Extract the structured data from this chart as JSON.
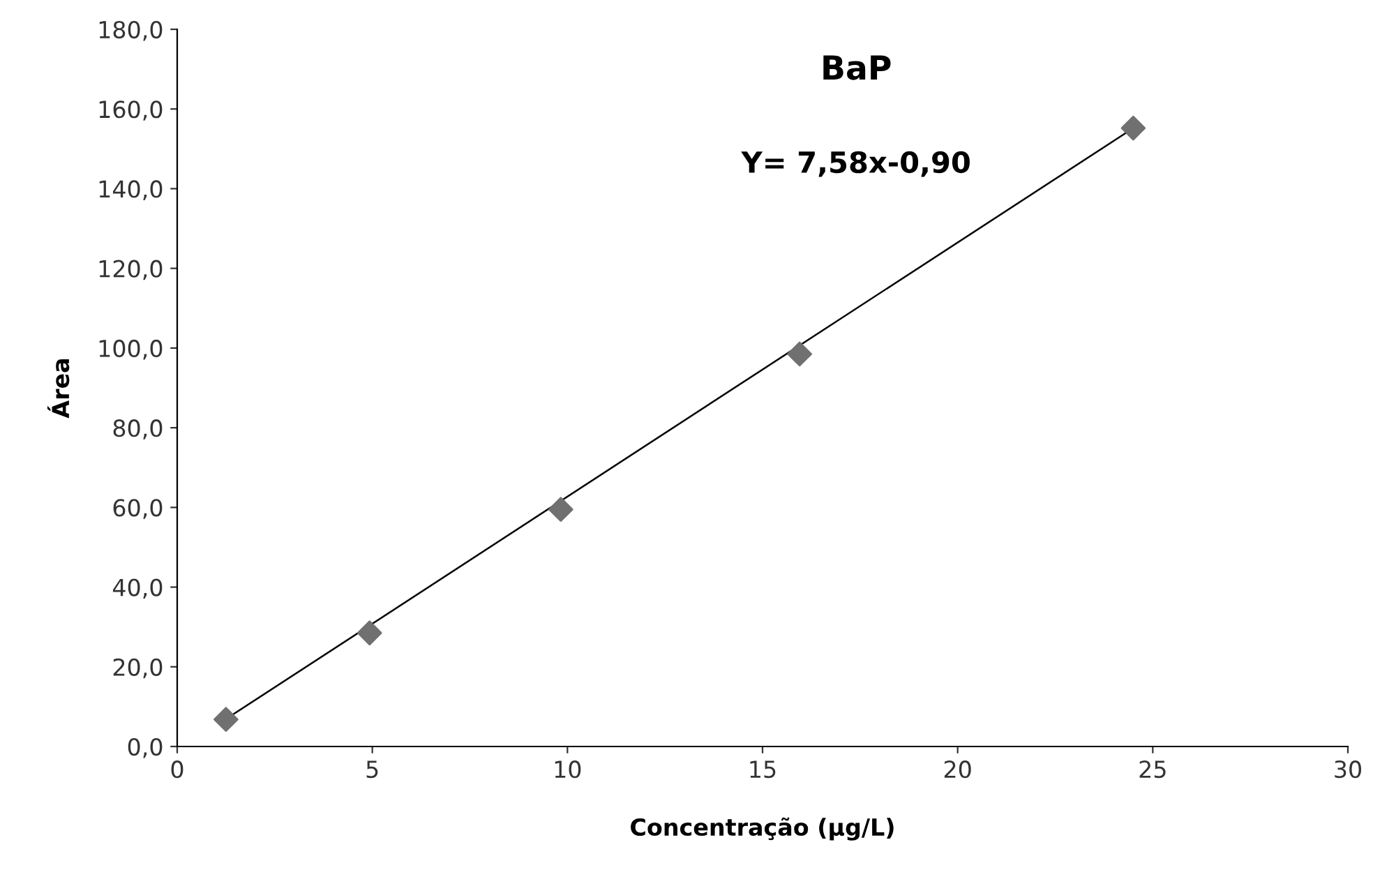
{
  "chart_data": {
    "type": "scatter",
    "title": "BaP",
    "xlabel": "Concentração (µg/L)",
    "ylabel": "Área",
    "annotations": [
      "Y= 7,58x-0,90"
    ],
    "series": [
      {
        "color": "#707070",
        "marker": "diamond",
        "x": [
          1.25,
          4.93,
          9.83,
          15.95,
          24.5
        ],
        "values": [
          6.8,
          28.5,
          59.5,
          98.5,
          155.2
        ]
      },
      {
        "type": "line",
        "color": "#000000",
        "marker": "none",
        "line_style": "solid",
        "x": [
          1.25,
          24.5
        ],
        "values": [
          6.9,
          155.2
        ]
      }
    ],
    "xlim": [
      0,
      30
    ],
    "xticks": [
      0,
      5,
      10,
      15,
      20,
      25,
      30
    ],
    "ylim": [
      0,
      180
    ],
    "yticks": [
      {
        "value": 0,
        "label": "0,0"
      },
      {
        "value": 20,
        "label": "20,0"
      },
      {
        "value": 40,
        "label": "40,0"
      },
      {
        "value": 60,
        "label": "60,0"
      },
      {
        "value": 80,
        "label": "80,0"
      },
      {
        "value": 100,
        "label": "100,0"
      },
      {
        "value": 120,
        "label": "120,0"
      },
      {
        "value": 140,
        "label": "140,0"
      },
      {
        "value": 160,
        "label": "160,0"
      },
      {
        "value": 180,
        "label": "180,0"
      }
    ],
    "grid": false,
    "legend": false
  }
}
